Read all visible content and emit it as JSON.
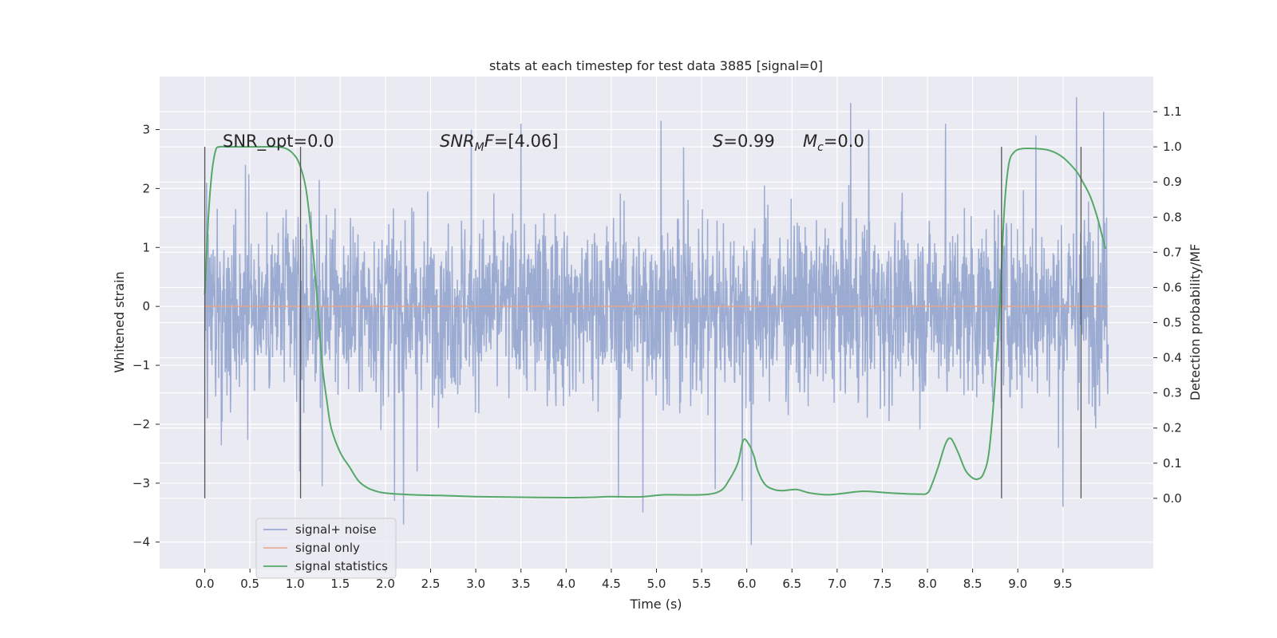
{
  "chart_data": {
    "type": "line",
    "title": "stats at each timestep for test data 3885 [signal=0]",
    "xlabel": "Time (s)",
    "ylabel": "Whitened strain",
    "y2label": "Detection probability/MF",
    "xlim": [
      -0.5,
      10.5
    ],
    "ylim": [
      -4.45,
      3.9
    ],
    "y2lim": [
      -0.2,
      1.2
    ],
    "xticks": [
      0.0,
      0.5,
      1.0,
      1.5,
      2.0,
      2.5,
      3.0,
      3.5,
      4.0,
      4.5,
      5.0,
      5.5,
      6.0,
      6.5,
      7.0,
      7.5,
      8.0,
      8.5,
      9.0,
      9.5
    ],
    "xtick_labels": [
      "0.0",
      "0.5",
      "1.0",
      "1.5",
      "2.0",
      "2.5",
      "3.0",
      "3.5",
      "4.0",
      "4.5",
      "5.0",
      "5.5",
      "6.0",
      "6.5",
      "7.0",
      "7.5",
      "8.0",
      "8.5",
      "9.0",
      "9.5"
    ],
    "yticks": [
      -4,
      -3,
      -2,
      -1,
      0,
      1,
      2,
      3
    ],
    "ytick_labels": [
      "−4",
      "−3",
      "−2",
      "−1",
      "0",
      "1",
      "2",
      "3"
    ],
    "y2ticks": [
      0.0,
      0.1,
      0.2,
      0.3,
      0.4,
      0.5,
      0.6,
      0.7,
      0.8,
      0.9,
      1.0,
      1.1
    ],
    "y2tick_labels": [
      "0.0",
      "0.1",
      "0.2",
      "0.3",
      "0.4",
      "0.5",
      "0.6",
      "0.7",
      "0.8",
      "0.9",
      "1.0",
      "1.1"
    ],
    "grid": true,
    "legend_position": "lower-left",
    "annotations": {
      "snr_opt": "SNR_opt=0.0",
      "snr_mf_prefix": "SNR",
      "snr_mf_sub": "M",
      "snr_mf_suffix": "F",
      "snr_mf_value": "=[4.06]",
      "s_label": "S",
      "s_value": "=0.99",
      "mc_label": "M",
      "mc_sub": "c",
      "mc_value": "=0.0"
    },
    "vertical_lines": [
      0.0,
      1.06,
      8.82,
      9.7
    ],
    "series": [
      {
        "name": "signal+ noise",
        "axis": "left",
        "color": "#8da0cb",
        "description_values": {
          "x_range": [
            0.0,
            10.0
          ],
          "typical_band": [
            -1.5,
            1.5
          ],
          "spikes": [
            [
              0.02,
              2.1
            ],
            [
              0.03,
              -1.9
            ],
            [
              0.45,
              2.4
            ],
            [
              1.05,
              -2.8
            ],
            [
              1.3,
              -3.05
            ],
            [
              1.95,
              -2.1
            ],
            [
              2.1,
              -3.3
            ],
            [
              2.2,
              -3.7
            ],
            [
              2.35,
              -2.8
            ],
            [
              4.58,
              -3.25
            ],
            [
              4.85,
              -3.5
            ],
            [
              5.3,
              2.7
            ],
            [
              5.65,
              -3.1
            ],
            [
              5.95,
              -3.3
            ],
            [
              6.05,
              -4.05
            ],
            [
              7.15,
              3.45
            ],
            [
              7.35,
              3.0
            ],
            [
              9.2,
              2.9
            ],
            [
              9.5,
              -3.4
            ],
            [
              9.65,
              3.55
            ],
            [
              9.95,
              3.3
            ],
            [
              8.2,
              3.1
            ],
            [
              2.95,
              3.0
            ],
            [
              3.5,
              3.1
            ],
            [
              5.05,
              3.15
            ]
          ]
        }
      },
      {
        "name": "signal only",
        "axis": "left",
        "color": "#e5a68a",
        "x": [
          0.0,
          10.0
        ],
        "y": [
          0.0,
          0.0
        ]
      },
      {
        "name": "signal statistics",
        "axis": "right",
        "color": "#55a868",
        "x": [
          0.0,
          0.04,
          0.08,
          0.12,
          0.16,
          0.25,
          0.4,
          0.6,
          0.8,
          0.9,
          0.98,
          1.05,
          1.12,
          1.18,
          1.25,
          1.3,
          1.35,
          1.4,
          1.5,
          1.6,
          1.7,
          1.8,
          1.9,
          2.0,
          2.3,
          2.6,
          3.0,
          3.5,
          4.0,
          4.3,
          4.5,
          4.8,
          5.1,
          5.5,
          5.7,
          5.8,
          5.9,
          5.96,
          6.02,
          6.08,
          6.12,
          6.2,
          6.3,
          6.4,
          6.55,
          6.7,
          6.9,
          7.1,
          7.3,
          7.6,
          7.9,
          8.0,
          8.05,
          8.12,
          8.2,
          8.26,
          8.34,
          8.42,
          8.5,
          8.56,
          8.62,
          8.68,
          8.74,
          8.8,
          8.85,
          8.9,
          8.96,
          9.05,
          9.2,
          9.35,
          9.5,
          9.65,
          9.72,
          9.8,
          9.88,
          9.97
        ],
        "y": [
          0.58,
          0.8,
          0.93,
          0.99,
          1.0,
          1.0,
          1.0,
          1.0,
          1.0,
          0.995,
          0.98,
          0.95,
          0.88,
          0.75,
          0.55,
          0.38,
          0.28,
          0.2,
          0.13,
          0.09,
          0.05,
          0.03,
          0.02,
          0.015,
          0.01,
          0.008,
          0.005,
          0.003,
          0.002,
          0.003,
          0.005,
          0.004,
          0.01,
          0.01,
          0.02,
          0.05,
          0.1,
          0.165,
          0.155,
          0.12,
          0.08,
          0.04,
          0.025,
          0.022,
          0.025,
          0.015,
          0.01,
          0.015,
          0.02,
          0.015,
          0.012,
          0.015,
          0.04,
          0.09,
          0.155,
          0.17,
          0.13,
          0.08,
          0.058,
          0.055,
          0.07,
          0.13,
          0.3,
          0.55,
          0.82,
          0.95,
          0.985,
          0.995,
          0.995,
          0.99,
          0.97,
          0.93,
          0.9,
          0.86,
          0.8,
          0.71
        ]
      }
    ]
  }
}
